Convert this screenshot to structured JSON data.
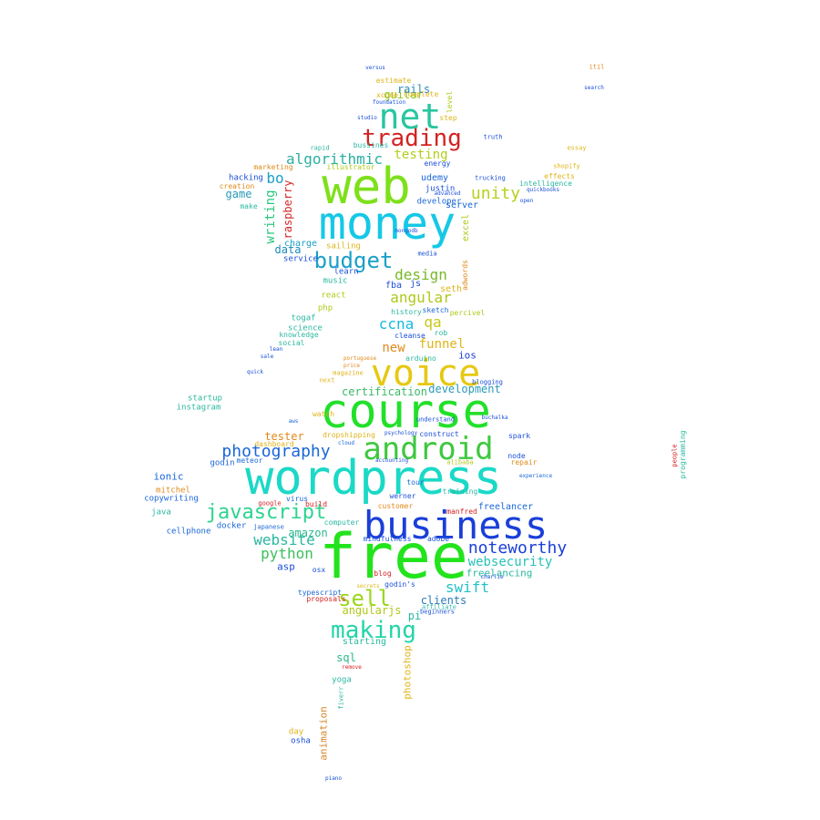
{
  "words": [
    {
      "text": "free",
      "color": "#22e31c",
      "size": 68
    },
    {
      "text": "wordpress",
      "color": "#1ad9c6",
      "size": 52
    },
    {
      "text": "course",
      "color": "#22e02a",
      "size": 52
    },
    {
      "text": "money",
      "color": "#16c8e6",
      "size": 50
    },
    {
      "text": "web",
      "color": "#7ee01a",
      "size": 54
    },
    {
      "text": "business",
      "color": "#1a3fd9",
      "size": 42
    },
    {
      "text": "voice",
      "color": "#e6c812",
      "size": 40
    },
    {
      "text": "net",
      "color": "#28c6a0",
      "size": 38
    },
    {
      "text": "android",
      "color": "#3ec83e",
      "size": 34
    },
    {
      "text": "trading",
      "color": "#d42222",
      "size": 26
    },
    {
      "text": "making",
      "color": "#24d4a8",
      "size": 26
    },
    {
      "text": "javascript",
      "color": "#2bd48e",
      "size": 22
    },
    {
      "text": "budget",
      "color": "#1aa0c8",
      "size": 24
    },
    {
      "text": "sell",
      "color": "#9ad61a",
      "size": 24
    },
    {
      "text": "photography",
      "color": "#1a66d9",
      "size": 18
    },
    {
      "text": "noteworthy",
      "color": "#1a3fd9",
      "size": 18
    },
    {
      "text": "algorithmic",
      "color": "#2bb0a0",
      "size": 16
    },
    {
      "text": "unity",
      "color": "#b8d01a",
      "size": 18
    },
    {
      "text": "design",
      "color": "#7ab82a",
      "size": 16
    },
    {
      "text": "angular",
      "color": "#b0c81a",
      "size": 16
    },
    {
      "text": "website",
      "color": "#2ab8a0",
      "size": 16
    },
    {
      "text": "python",
      "color": "#3ac05a",
      "size": 16
    },
    {
      "text": "swift",
      "color": "#24c0c8",
      "size": 16
    },
    {
      "text": "websecurity",
      "color": "#28c0b8",
      "size": 14
    },
    {
      "text": "testing",
      "color": "#b0d01a",
      "size": 14
    },
    {
      "text": "ccna",
      "color": "#18b8e0",
      "size": 16
    },
    {
      "text": "qa",
      "color": "#c8c81a",
      "size": 16
    },
    {
      "text": "new",
      "color": "#e08a1a",
      "size": 14
    },
    {
      "text": "funnel",
      "color": "#e0b41a",
      "size": 14
    },
    {
      "text": "certification",
      "color": "#3ab868",
      "size": 12
    },
    {
      "text": "development",
      "color": "#2a9ab8",
      "size": 12
    },
    {
      "text": "guitar",
      "color": "#88c81a",
      "size": 12
    },
    {
      "text": "rails",
      "color": "#2a8ab8",
      "size": 12
    },
    {
      "text": "writing",
      "color": "#2ac880",
      "size": 14
    },
    {
      "text": "bo",
      "color": "#1aa0c8",
      "size": 16
    },
    {
      "text": "raspberry",
      "color": "#d4282a",
      "size": 12
    },
    {
      "text": "game",
      "color": "#2a9ab8",
      "size": 12
    },
    {
      "text": "data",
      "color": "#1a8ab8",
      "size": 12
    },
    {
      "text": "amazon",
      "color": "#2ab890",
      "size": 12
    },
    {
      "text": "tester",
      "color": "#e08a1a",
      "size": 12
    },
    {
      "text": "sql",
      "color": "#2ab888",
      "size": 12
    },
    {
      "text": "angularjs",
      "color": "#b0c81a",
      "size": 12
    },
    {
      "text": "pi",
      "color": "#2ab8a0",
      "size": 12
    },
    {
      "text": "clients",
      "color": "#2a7ab8",
      "size": 12
    },
    {
      "text": "freelancing",
      "color": "#2ab8a0",
      "size": 11
    },
    {
      "text": "ios",
      "color": "#1a3fd9",
      "size": 11
    },
    {
      "text": "photoshop",
      "color": "#e0b41a",
      "size": 11
    },
    {
      "text": "animation",
      "color": "#d4862a",
      "size": 11
    },
    {
      "text": "asp",
      "color": "#1a4fd9",
      "size": 11
    },
    {
      "text": "ionic",
      "color": "#1a66d9",
      "size": 11
    },
    {
      "text": "freelancer",
      "color": "#1a66d9",
      "size": 10
    },
    {
      "text": "starting",
      "color": "#2ab8a0",
      "size": 10
    },
    {
      "text": "charge",
      "color": "#1aa0c8",
      "size": 10
    },
    {
      "text": "seth",
      "color": "#e0b41a",
      "size": 10
    },
    {
      "text": "fba",
      "color": "#1a4fd9",
      "size": 10
    },
    {
      "text": "js",
      "color": "#1a4fd9",
      "size": 10
    },
    {
      "text": "udemy",
      "color": "#1a66d9",
      "size": 10
    },
    {
      "text": "server",
      "color": "#1a66d9",
      "size": 10
    },
    {
      "text": "developer",
      "color": "#1a66d9",
      "size": 9
    },
    {
      "text": "excel",
      "color": "#b0c81a",
      "size": 10
    },
    {
      "text": "yoga",
      "color": "#2ab8a0",
      "size": 9
    },
    {
      "text": "osha",
      "color": "#1a4fd9",
      "size": 9
    },
    {
      "text": "day",
      "color": "#e0b41a",
      "size": 9
    },
    {
      "text": "mitchel",
      "color": "#e08a1a",
      "size": 9
    },
    {
      "text": "copywriting",
      "color": "#1a66d9",
      "size": 9
    },
    {
      "text": "java",
      "color": "#2ab8a0",
      "size": 9
    },
    {
      "text": "cellphone",
      "color": "#1a66d9",
      "size": 9
    },
    {
      "text": "docker",
      "color": "#1a66d9",
      "size": 9
    },
    {
      "text": "godin",
      "color": "#1a66d9",
      "size": 9
    },
    {
      "text": "startup",
      "color": "#2ab8a0",
      "size": 9
    },
    {
      "text": "instagram",
      "color": "#2ab8a0",
      "size": 9
    },
    {
      "text": "togaf",
      "color": "#2ab8a0",
      "size": 9
    },
    {
      "text": "science",
      "color": "#2ab8a0",
      "size": 9
    },
    {
      "text": "knowledge",
      "color": "#2ab8a0",
      "size": 8
    },
    {
      "text": "social",
      "color": "#2ab8a0",
      "size": 8
    },
    {
      "text": "php",
      "color": "#b0c81a",
      "size": 9
    },
    {
      "text": "react",
      "color": "#b0c81a",
      "size": 9
    },
    {
      "text": "music",
      "color": "#2ab8a0",
      "size": 9
    },
    {
      "text": "service",
      "color": "#1a4fd9",
      "size": 9
    },
    {
      "text": "learn",
      "color": "#1a4fd9",
      "size": 9
    },
    {
      "text": "sailing",
      "color": "#e0b41a",
      "size": 9
    },
    {
      "text": "history",
      "color": "#2ab8a0",
      "size": 8
    },
    {
      "text": "sketch",
      "color": "#1a66d9",
      "size": 8
    },
    {
      "text": "cleanse",
      "color": "#1a4fd9",
      "size": 8
    },
    {
      "text": "arduino",
      "color": "#2ab8a0",
      "size": 8
    },
    {
      "text": "intelligence",
      "color": "#2ab8a0",
      "size": 8
    },
    {
      "text": "hacking",
      "color": "#1a4fd9",
      "size": 9
    },
    {
      "text": "creation",
      "color": "#e08a1a",
      "size": 8
    },
    {
      "text": "marketing",
      "color": "#e08a1a",
      "size": 8
    },
    {
      "text": "make",
      "color": "#2ab8a0",
      "size": 8
    },
    {
      "text": "estimate",
      "color": "#e0b41a",
      "size": 8
    },
    {
      "text": "xcode",
      "color": "#e0b41a",
      "size": 8
    },
    {
      "text": "complete",
      "color": "#e0b41a",
      "size": 8
    },
    {
      "text": "step",
      "color": "#e0b41a",
      "size": 8
    },
    {
      "text": "level",
      "color": "#b0c81a",
      "size": 8
    },
    {
      "text": "energy",
      "color": "#1a4fd9",
      "size": 8
    },
    {
      "text": "justin",
      "color": "#1a4fd9",
      "size": 9
    },
    {
      "text": "adwords",
      "color": "#e08a1a",
      "size": 8
    },
    {
      "text": "percivel",
      "color": "#b0c81a",
      "size": 8
    },
    {
      "text": "virus",
      "color": "#1a66d9",
      "size": 8
    },
    {
      "text": "build",
      "color": "#d42222",
      "size": 8
    },
    {
      "text": "computer",
      "color": "#2ab8a0",
      "size": 8
    },
    {
      "text": "mindfulness",
      "color": "#1a4fd9",
      "size": 8
    },
    {
      "text": "blog",
      "color": "#d42222",
      "size": 8
    },
    {
      "text": "osx",
      "color": "#1a4fd9",
      "size": 8
    },
    {
      "text": "typescript",
      "color": "#1a66d9",
      "size": 8
    },
    {
      "text": "proposals",
      "color": "#d42222",
      "size": 8
    },
    {
      "text": "customer",
      "color": "#e08a1a",
      "size": 8
    },
    {
      "text": "manfred",
      "color": "#d42222",
      "size": 8
    },
    {
      "text": "training",
      "color": "#2ab8a0",
      "size": 8
    },
    {
      "text": "werner",
      "color": "#1a4fd9",
      "size": 8
    },
    {
      "text": "tour",
      "color": "#1a66d9",
      "size": 8
    },
    {
      "text": "node",
      "color": "#1a4fd9",
      "size": 8
    },
    {
      "text": "repair",
      "color": "#e08a1a",
      "size": 8
    },
    {
      "text": "spark",
      "color": "#1a4fd9",
      "size": 8
    },
    {
      "text": "dropshipping",
      "color": "#e0b41a",
      "size": 8
    },
    {
      "text": "construct",
      "color": "#1a4fd9",
      "size": 8
    },
    {
      "text": "understand",
      "color": "#1a4fd9",
      "size": 7
    },
    {
      "text": "watch",
      "color": "#e0b41a",
      "size": 8
    },
    {
      "text": "dashboard",
      "color": "#e0b41a",
      "size": 8
    },
    {
      "text": "meteor",
      "color": "#1a66d9",
      "size": 8
    },
    {
      "text": "rob",
      "color": "#2ab8a0",
      "size": 8
    },
    {
      "text": "shopify",
      "color": "#e0b41a",
      "size": 7
    },
    {
      "text": "effects",
      "color": "#e0b41a",
      "size": 8
    },
    {
      "text": "trucking",
      "color": "#1a4fd9",
      "size": 7
    },
    {
      "text": "essay",
      "color": "#e0b41a",
      "size": 7
    },
    {
      "text": "programming",
      "color": "#2ab8a0",
      "size": 8
    },
    {
      "text": "japanese",
      "color": "#1a66d9",
      "size": 7
    },
    {
      "text": "godin's",
      "color": "#1a4fd9",
      "size": 8
    },
    {
      "text": "adobe",
      "color": "#1a4fd9",
      "size": 8
    },
    {
      "text": "magazine",
      "color": "#e0b41a",
      "size": 7
    },
    {
      "text": "next",
      "color": "#e0b41a",
      "size": 7
    },
    {
      "text": "fiverr",
      "color": "#2ab8a0",
      "size": 7
    },
    {
      "text": "piano",
      "color": "#1a4fd9",
      "size": 6
    },
    {
      "text": "studio",
      "color": "#1a4fd9",
      "size": 6
    },
    {
      "text": "bussines",
      "color": "#2ab8a0",
      "size": 8
    },
    {
      "text": "rapid",
      "color": "#2ab8a0",
      "size": 7
    },
    {
      "text": "illustrator",
      "color": "#b0c81a",
      "size": 8
    },
    {
      "text": "itil",
      "color": "#e08a1a",
      "size": 7
    },
    {
      "text": "versus",
      "color": "#1a4fd9",
      "size": 6
    },
    {
      "text": "media",
      "color": "#1a4fd9",
      "size": 7
    },
    {
      "text": "truth",
      "color": "#1a4fd9",
      "size": 7
    },
    {
      "text": "beginners",
      "color": "#1a4fd9",
      "size": 7
    },
    {
      "text": "affiliate",
      "color": "#2ab8a0",
      "size": 7
    },
    {
      "text": "alibaba",
      "color": "#b0c81a",
      "size": 7
    },
    {
      "text": "google",
      "color": "#d42222",
      "size": 7
    },
    {
      "text": "experience",
      "color": "#1a66d9",
      "size": 6
    },
    {
      "text": "remove",
      "color": "#d42222",
      "size": 6
    },
    {
      "text": "accounting",
      "color": "#1a4fd9",
      "size": 6
    },
    {
      "text": "blogging",
      "color": "#1a4fd9",
      "size": 7
    },
    {
      "text": "buchalka",
      "color": "#1a4fd9",
      "size": 6
    },
    {
      "text": "sale",
      "color": "#1a4fd9",
      "size": 6
    },
    {
      "text": "lean",
      "color": "#1a4fd9",
      "size": 6
    },
    {
      "text": "price",
      "color": "#e08a1a",
      "size": 6
    },
    {
      "text": "quick",
      "color": "#1a4fd9",
      "size": 6
    },
    {
      "text": "cloud",
      "color": "#1a66d9",
      "size": 6
    },
    {
      "text": "charlie",
      "color": "#1a4fd9",
      "size": 6
    },
    {
      "text": "aws",
      "color": "#1a66d9",
      "size": 6
    },
    {
      "text": "mongodb",
      "color": "#1a4fd9",
      "size": 6
    },
    {
      "text": "open",
      "color": "#1a4fd9",
      "size": 6
    },
    {
      "text": "search",
      "color": "#1a4fd9",
      "size": 6
    },
    {
      "text": "advanced",
      "color": "#1a4fd9",
      "size": 6
    },
    {
      "text": "foundation",
      "color": "#1a4fd9",
      "size": 6
    },
    {
      "text": "secrets",
      "color": "#e0b41a",
      "size": 6
    },
    {
      "text": "people",
      "color": "#d42222",
      "size": 7
    },
    {
      "text": "quickbooks",
      "color": "#1a4fd9",
      "size": 6
    },
    {
      "text": "portuguese",
      "color": "#e08a1a",
      "size": 6
    },
    {
      "text": "psychology",
      "color": "#1a4fd9",
      "size": 6
    }
  ]
}
